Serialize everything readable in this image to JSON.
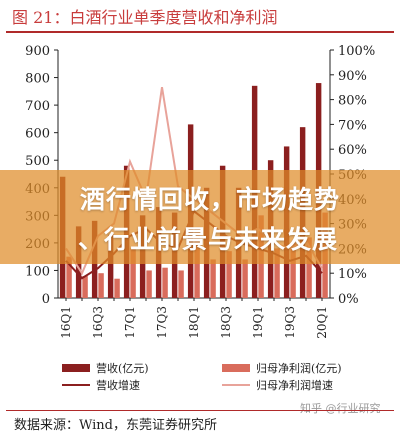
{
  "title": "图 21：白酒行业单季度营收和净利润",
  "overlay": {
    "line1": "酒行情回收，市场趋势",
    "line2": "、行业前景与未来发展"
  },
  "source": "数据来源：Wind，东莞证券研究所",
  "watermark": "知乎 @行业研究",
  "chart_data": {
    "type": "bar",
    "x_tick_labels": [
      "16Q1",
      "16Q3",
      "17Q1",
      "17Q3",
      "18Q1",
      "18Q3",
      "19Q1",
      "19Q3",
      "20Q1"
    ],
    "categories": [
      "16Q1",
      "16Q2",
      "16Q3",
      "16Q4",
      "17Q1",
      "17Q2",
      "17Q3",
      "17Q4",
      "18Q1",
      "18Q2",
      "18Q3",
      "18Q4",
      "19Q1",
      "19Q2",
      "19Q3",
      "19Q4",
      "20Q1"
    ],
    "y_left": {
      "ticks": [
        "0",
        "100",
        "200",
        "300",
        "400",
        "500",
        "600",
        "700",
        "800",
        "900"
      ],
      "ylim": [
        0,
        900
      ]
    },
    "y_right": {
      "ticks": [
        "0%",
        "10%",
        "20%",
        "30%",
        "40%",
        "50%",
        "60%",
        "70%",
        "80%",
        "90%",
        "100%"
      ],
      "ylim": [
        0,
        100
      ]
    },
    "series": [
      {
        "name": "营收(亿元)",
        "kind": "bar",
        "axis": "left",
        "color": "#8b1f1f",
        "values": [
          440,
          260,
          280,
          230,
          480,
          300,
          330,
          310,
          630,
          400,
          480,
          400,
          770,
          500,
          550,
          620,
          780
        ]
      },
      {
        "name": "归母净利润(亿元)",
        "kind": "bar",
        "axis": "left",
        "color": "#d96c5c",
        "values": [
          150,
          80,
          90,
          70,
          180,
          100,
          110,
          100,
          250,
          140,
          170,
          140,
          300,
          180,
          200,
          220,
          310
        ]
      },
      {
        "name": "营收增速",
        "kind": "line",
        "axis": "right",
        "color": "#8b1f1f",
        "values": [
          15,
          8,
          12,
          18,
          25,
          28,
          22,
          20,
          35,
          30,
          25,
          22,
          20,
          18,
          15,
          17,
          10
        ]
      },
      {
        "name": "归母净利润增速",
        "kind": "line",
        "axis": "right",
        "color": "#e8a39a",
        "values": [
          20,
          10,
          25,
          30,
          55,
          40,
          85,
          45,
          40,
          35,
          30,
          25,
          28,
          22,
          20,
          23,
          12
        ]
      }
    ]
  },
  "colors": {
    "title_red": "#c83c3c",
    "banner_orange": "#df8c28"
  }
}
